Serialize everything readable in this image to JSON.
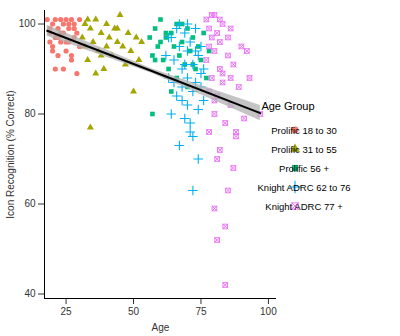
{
  "chart_data": {
    "type": "scatter",
    "x_label": "Age",
    "y_label": "Icon Recognition (% Correct)",
    "xlim": [
      17,
      103
    ],
    "ylim": [
      39,
      103
    ],
    "xticks": [
      25,
      50,
      75,
      100
    ],
    "yticks": [
      40,
      60,
      80,
      100
    ],
    "grid": false,
    "legend": "right",
    "legend_title": "Age Group",
    "series": [
      {
        "name": "Prolific 18 to 30",
        "color": "#F8766D",
        "marker": "circle",
        "x": [
          18,
          19,
          19,
          20,
          20,
          21,
          21,
          22,
          22,
          23,
          23,
          24,
          24,
          25,
          25,
          26,
          26,
          27,
          27,
          28,
          28,
          29,
          29,
          30,
          30,
          19,
          21,
          23,
          25,
          27,
          22,
          28,
          24,
          26,
          20
        ],
        "values": [
          101,
          98,
          96,
          100,
          95,
          101,
          97,
          99,
          93,
          101,
          96,
          100,
          98,
          101,
          94,
          99,
          96,
          101,
          92,
          100,
          97,
          98,
          89,
          101,
          95,
          99,
          90,
          98,
          96,
          93,
          97,
          99,
          90,
          100,
          94
        ]
      },
      {
        "name": "Prolific 31 to 55",
        "color": "#A3A500",
        "marker": "triangle",
        "x": [
          31,
          32,
          32,
          33,
          34,
          34,
          35,
          36,
          37,
          38,
          39,
          40,
          41,
          42,
          43,
          44,
          45,
          46,
          47,
          48,
          49,
          50,
          51,
          52,
          53,
          36,
          40,
          44,
          33,
          38
        ],
        "values": [
          97,
          100,
          95,
          92,
          77,
          99,
          96,
          101,
          94,
          98,
          90,
          100,
          97,
          93,
          99,
          96,
          102,
          95,
          91,
          98,
          94,
          85,
          97,
          92,
          96,
          89,
          95,
          99,
          101,
          93
        ]
      },
      {
        "name": "Prolific 56 +",
        "color": "#00BF7D",
        "marker": "square",
        "x": [
          56,
          57,
          57,
          58,
          59,
          60,
          61,
          62,
          63,
          64,
          65,
          66,
          66,
          67,
          68,
          69,
          70,
          70,
          71,
          72,
          73,
          74,
          75,
          76,
          77,
          78,
          60,
          64,
          68,
          72,
          58,
          62
        ],
        "values": [
          97,
          80,
          93,
          99,
          95,
          101,
          92,
          97,
          90,
          98,
          95,
          100,
          88,
          93,
          96,
          91,
          99,
          86,
          94,
          97,
          90,
          95,
          92,
          98,
          88,
          94,
          96,
          85,
          100,
          91,
          92,
          98
        ]
      },
      {
        "name": "Knight ADRC 62 to 76",
        "color": "#00B0F6",
        "marker": "plus",
        "x": [
          62,
          63,
          64,
          64,
          65,
          66,
          66,
          67,
          67,
          68,
          68,
          69,
          69,
          70,
          70,
          70,
          71,
          71,
          72,
          72,
          72,
          73,
          73,
          74,
          74,
          74,
          75,
          75,
          76,
          76,
          65,
          67,
          69,
          71,
          73,
          75,
          63,
          68,
          70,
          72
        ],
        "values": [
          93,
          88,
          97,
          80,
          92,
          99,
          84,
          95,
          73,
          90,
          86,
          98,
          79,
          94,
          88,
          82,
          96,
          76,
          91,
          85,
          63,
          99,
          87,
          93,
          81,
          70,
          95,
          89,
          90,
          83,
          87,
          100,
          91,
          78,
          94,
          86,
          97,
          83,
          100,
          75
        ]
      },
      {
        "name": "Knight ADRC 77 +",
        "color": "#E76BF3",
        "marker": "square_cross",
        "x": [
          77,
          77,
          78,
          78,
          78,
          79,
          79,
          80,
          80,
          80,
          81,
          81,
          81,
          82,
          82,
          83,
          83,
          84,
          84,
          85,
          85,
          86,
          86,
          87,
          88,
          89,
          90,
          91,
          93,
          97,
          79,
          82,
          80,
          84,
          87,
          78,
          81,
          83,
          85,
          80,
          82,
          86,
          88,
          92
        ],
        "values": [
          101,
          92,
          99,
          85,
          76,
          97,
          88,
          102,
          94,
          80,
          98,
          84,
          52,
          96,
          72,
          100,
          89,
          78,
          55,
          93,
          63,
          99,
          82,
          91,
          76,
          86,
          95,
          79,
          88,
          80,
          102,
          90,
          59,
          42,
          68,
          95,
          70,
          87,
          97,
          83,
          101,
          88,
          75,
          94
        ]
      },
      {
        "type": "line",
        "color": "#000000",
        "x": [
          18,
          57,
          97
        ],
        "values": [
          98.5,
          89.5,
          80.2
        ],
        "lower": [
          97.3,
          89.0,
          78.5
        ],
        "upper": [
          99.7,
          90.0,
          81.9
        ]
      }
    ]
  }
}
